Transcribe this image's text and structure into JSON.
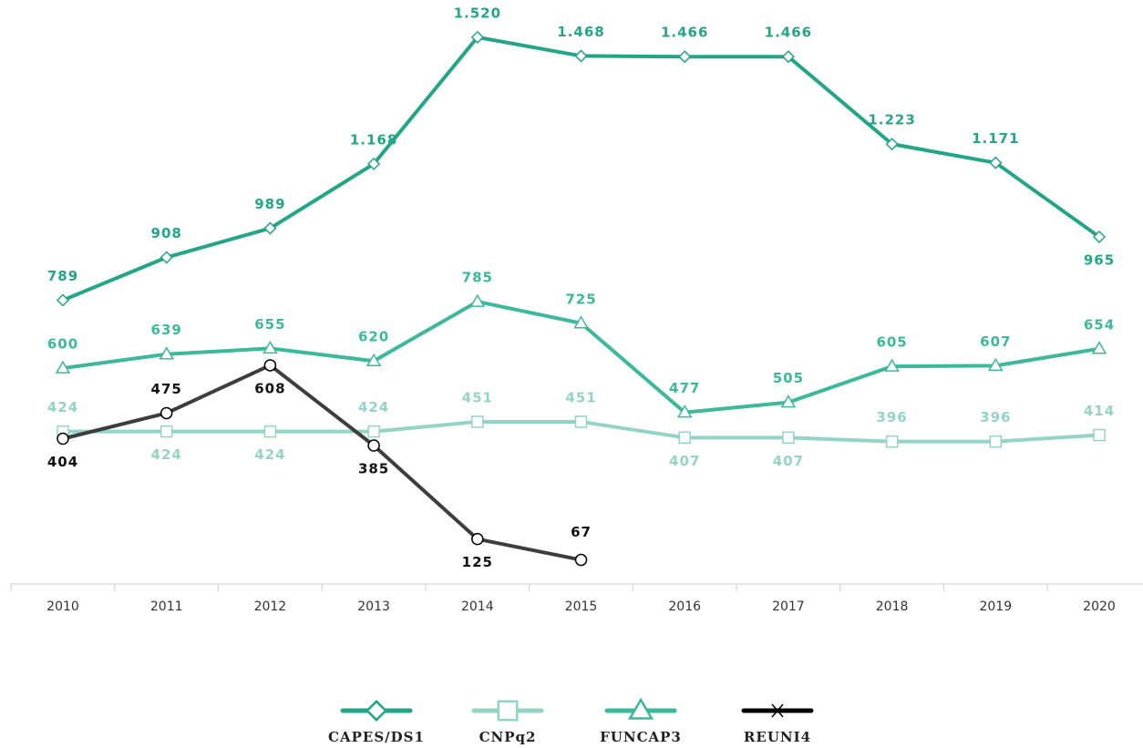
{
  "chart_data": {
    "type": "line",
    "categories": [
      "2010",
      "2011",
      "2012",
      "2013",
      "2014",
      "2015",
      "2016",
      "2017",
      "2018",
      "2019",
      "2020"
    ],
    "ylim": [
      0,
      1540
    ],
    "series": [
      {
        "name": "CAPES/DS1",
        "color": "#23a587",
        "marker": "diamond",
        "values": [
          789,
          908,
          989,
          1168,
          1520,
          1468,
          1466,
          1466,
          1223,
          1171,
          965
        ],
        "value_labels": [
          "789",
          "908",
          "989",
          "1.168",
          "1.520",
          "1.468",
          "1.466",
          "1.466",
          "1.223",
          "1.171",
          "965"
        ]
      },
      {
        "name": "CNPq2",
        "color": "#94d4c6",
        "marker": "square",
        "values": [
          424,
          424,
          424,
          424,
          451,
          451,
          407,
          407,
          396,
          396,
          414
        ]
      },
      {
        "name": "FUNCAP3",
        "color": "#3cb99b",
        "marker": "triangle",
        "values": [
          600,
          639,
          655,
          620,
          785,
          725,
          477,
          505,
          605,
          607,
          654
        ]
      },
      {
        "name": "REUNI4",
        "color": "#3d3d3d",
        "marker": "circle",
        "values": [
          404,
          475,
          608,
          385,
          125,
          67,
          null,
          null,
          null,
          null,
          null
        ]
      }
    ]
  }
}
